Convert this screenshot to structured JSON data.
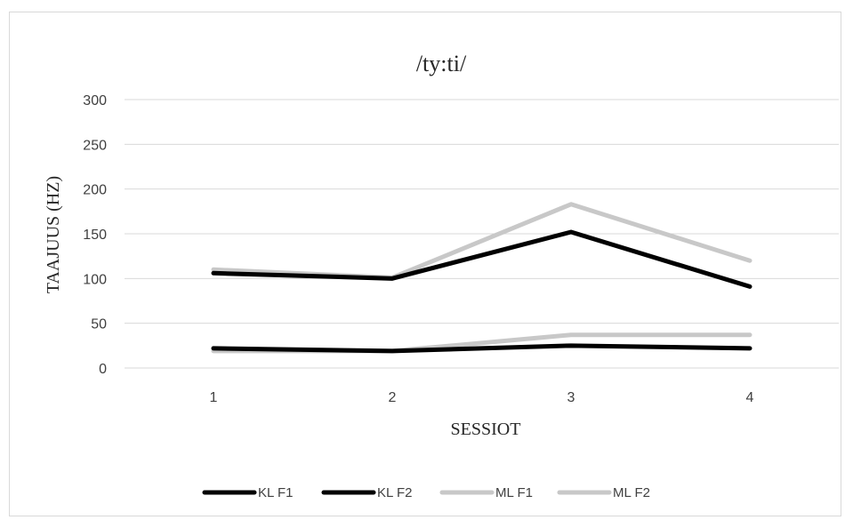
{
  "chart_data": {
    "type": "line",
    "title": "/ty:ti/",
    "xlabel": "SESSIOT",
    "ylabel": "TAAJUUS (HZ)",
    "categories": [
      "1",
      "2",
      "3",
      "4"
    ],
    "ylim": [
      0,
      300
    ],
    "yticks": [
      0,
      50,
      100,
      150,
      200,
      250,
      300
    ],
    "grid": true,
    "legend_position": "bottom",
    "series": [
      {
        "name": "KL F1",
        "color": "#000000",
        "values": [
          106,
          100,
          152,
          91
        ]
      },
      {
        "name": "KL F2",
        "color": "#000000",
        "values": [
          22,
          19,
          25,
          22
        ]
      },
      {
        "name": "ML F1",
        "color": "#c8c8c8",
        "values": [
          110,
          101,
          183,
          120
        ]
      },
      {
        "name": "ML F2",
        "color": "#c8c8c8",
        "values": [
          19,
          19,
          37,
          37
        ]
      }
    ]
  }
}
